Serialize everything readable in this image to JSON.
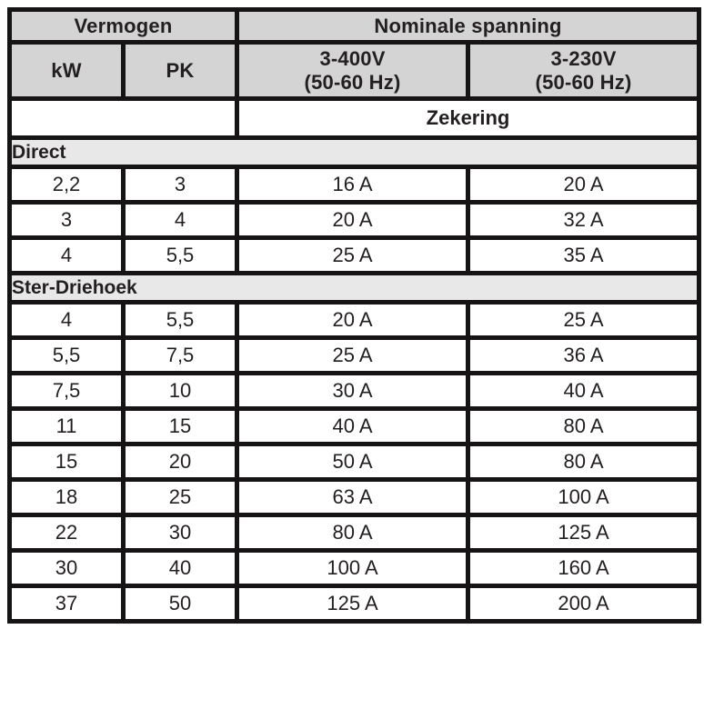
{
  "table": {
    "header": {
      "power_group": "Vermogen",
      "voltage_group": "Nominale spanning",
      "kw": "kW",
      "pk": "PK",
      "v400_line1": "3-400V",
      "v400_line2": "(50-60 Hz)",
      "v230_line1": "3-230V",
      "v230_line2": "(50-60 Hz)",
      "fuse": "Zekering"
    },
    "sections": [
      {
        "title": "Direct",
        "rows": [
          [
            "2,2",
            "3",
            "16 A",
            "20 A"
          ],
          [
            "3",
            "4",
            "20 A",
            "32 A"
          ],
          [
            "4",
            "5,5",
            "25 A",
            "35 A"
          ]
        ]
      },
      {
        "title": "Ster-Driehoek",
        "rows": [
          [
            "4",
            "5,5",
            "20 A",
            "25 A"
          ],
          [
            "5,5",
            "7,5",
            "25 A",
            "36 A"
          ],
          [
            "7,5",
            "10",
            "30 A",
            "40 A"
          ],
          [
            "11",
            "15",
            "40 A",
            "80 A"
          ],
          [
            "15",
            "20",
            "50 A",
            "80 A"
          ],
          [
            "18",
            "25",
            "63 A",
            "100 A"
          ],
          [
            "22",
            "30",
            "80 A",
            "125 A"
          ],
          [
            "30",
            "40",
            "100 A",
            "160 A"
          ],
          [
            "37",
            "50",
            "125 A",
            "200 A"
          ]
        ]
      }
    ],
    "colors": {
      "header_bg": "#d4d4d4",
      "section_bg": "#e8e8e8",
      "border": "#161414",
      "text": "#231f20"
    }
  }
}
